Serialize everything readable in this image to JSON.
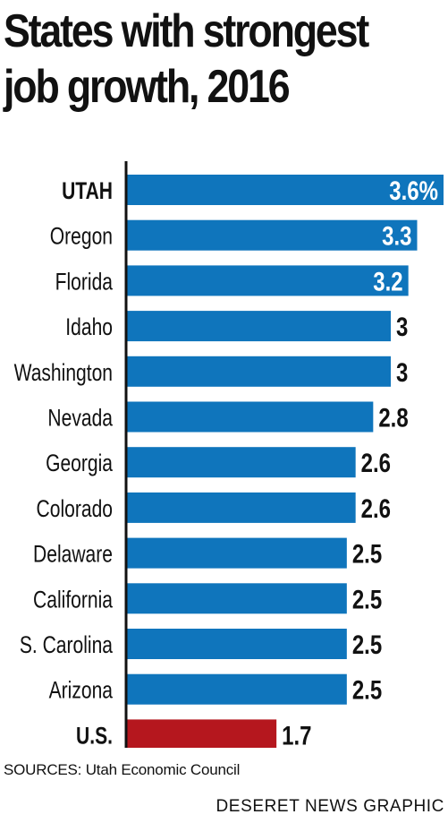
{
  "title": {
    "line1": "States with strongest",
    "line2": "job growth, 2016"
  },
  "chart_data": {
    "type": "bar",
    "orientation": "horizontal",
    "title": "States with strongest job growth, 2016",
    "categories": [
      "UTAH",
      "Oregon",
      "Florida",
      "Idaho",
      "Washington",
      "Nevada",
      "Georgia",
      "Colorado",
      "Delaware",
      "California",
      "S. Carolina",
      "Arizona",
      "U.S."
    ],
    "values": [
      3.6,
      3.3,
      3.2,
      3,
      3,
      2.8,
      2.6,
      2.6,
      2.5,
      2.5,
      2.5,
      2.5,
      1.7
    ],
    "data_labels": [
      "3.6%",
      "3.3",
      "3.2",
      "3",
      "3",
      "2.8",
      "2.6",
      "2.6",
      "2.5",
      "2.5",
      "2.5",
      "2.5",
      "1.7"
    ],
    "bold_categories": [
      "UTAH",
      "U.S."
    ],
    "highlight_category": "U.S.",
    "colors": {
      "bar": "#0f75bc",
      "highlight": "#b5171e",
      "axis": "#111111",
      "label_inside": "#ffffff",
      "label_outside": "#111111"
    },
    "xlim": [
      0,
      3.6
    ],
    "grid": false,
    "legend": "none"
  },
  "footer": {
    "sources": "SOURCES: Utah Economic Council",
    "credit": "DESERET NEWS GRAPHIC"
  }
}
